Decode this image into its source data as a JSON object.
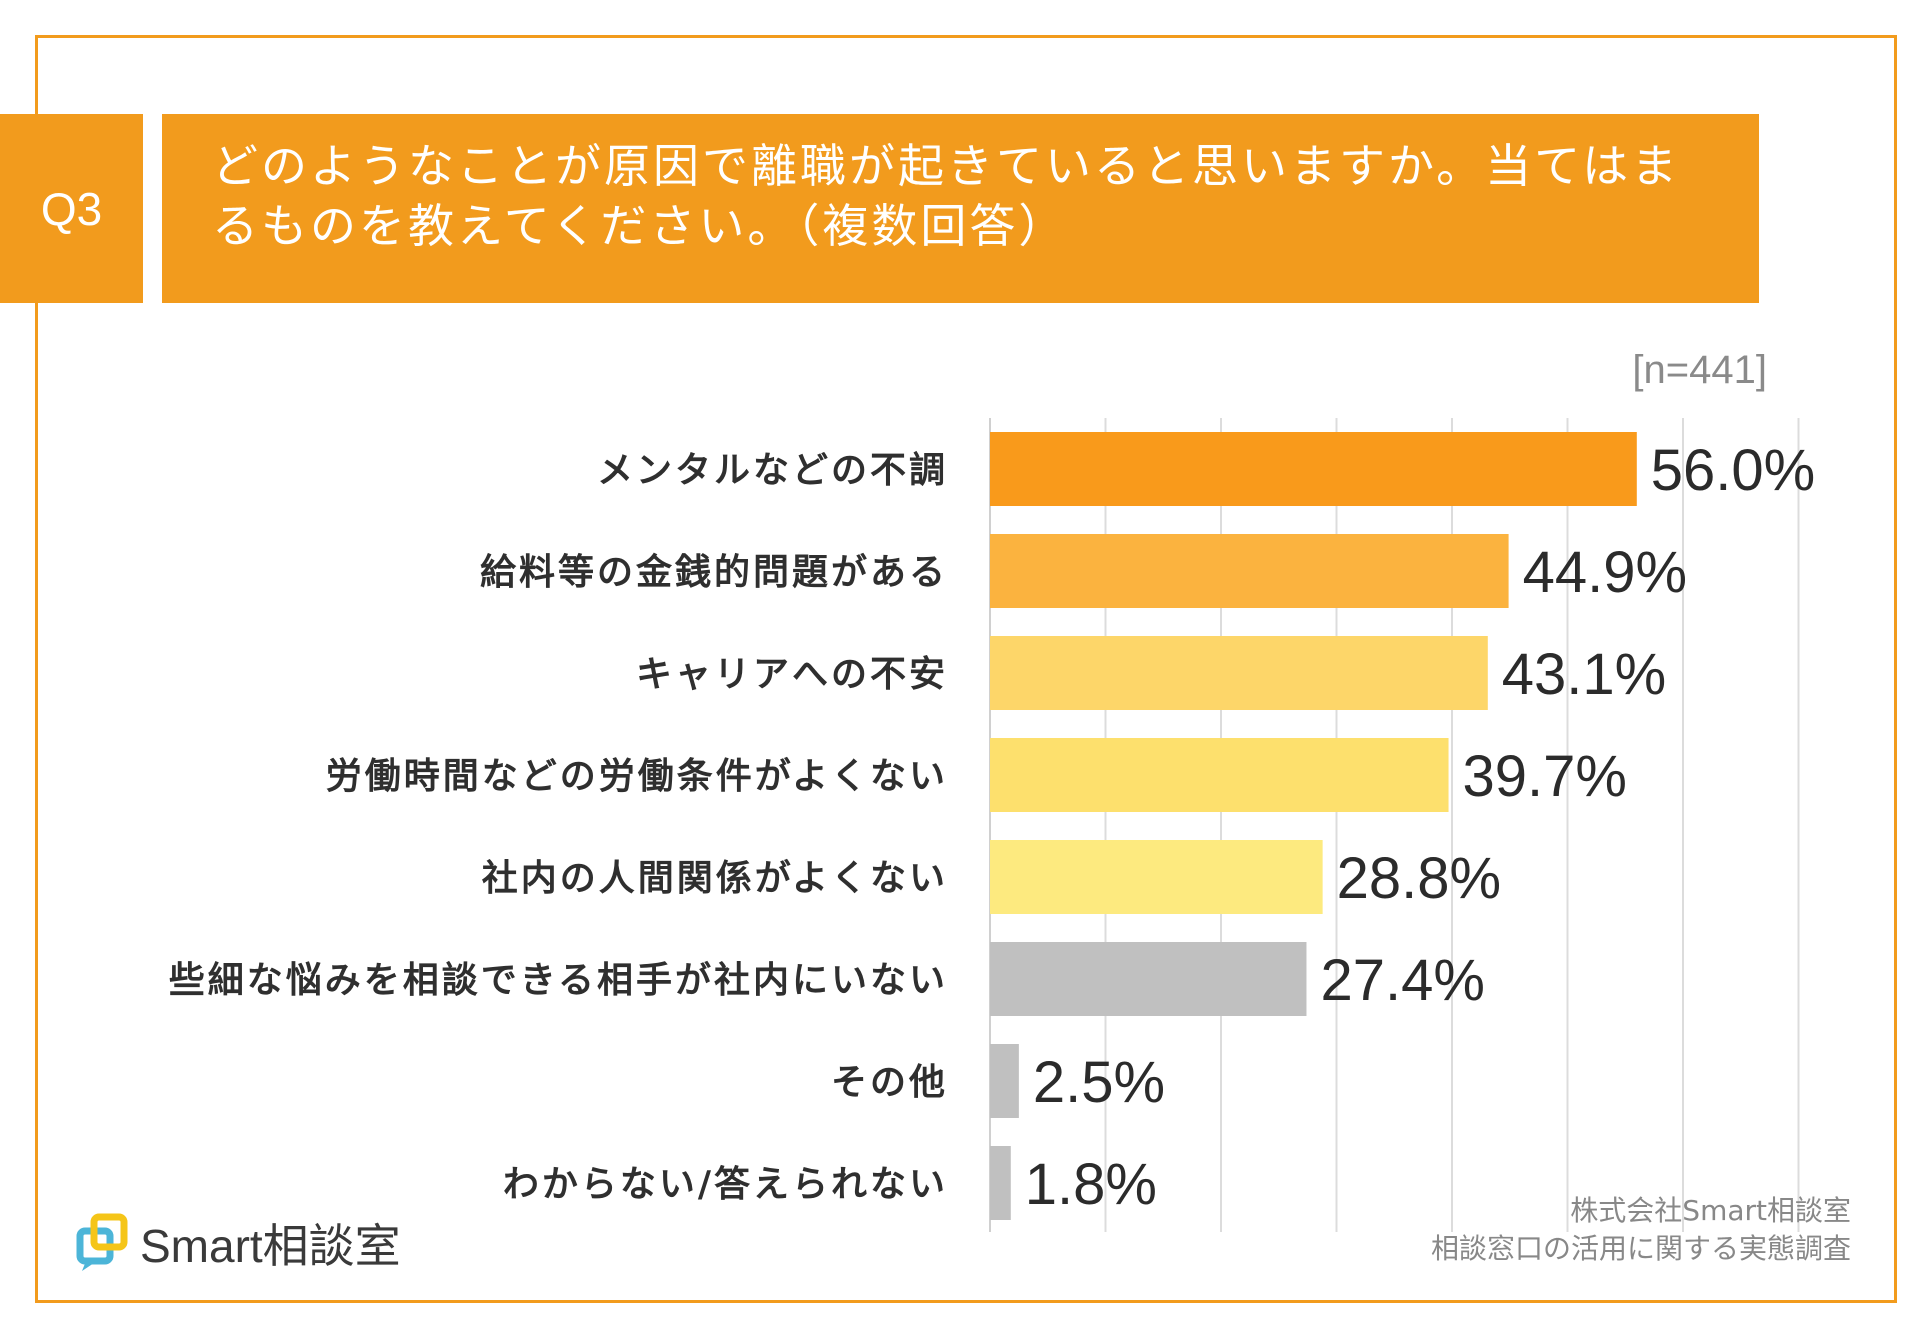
{
  "question": {
    "number": "Q3",
    "text_line1": "どのようなことが原因で離職が起きていると思いますか。当てはま",
    "text_line2": "るものを教えてください。（複数回答）"
  },
  "sample_size": "[n=441]",
  "colors": {
    "accent": "#f29b1d"
  },
  "chart_data": {
    "type": "bar",
    "orientation": "horizontal",
    "unit": "%",
    "xlim": [
      0,
      100
    ],
    "grid": true,
    "categories": [
      "メンタルなどの不調",
      "給料等の金銭的問題がある",
      "キャリアへの不安",
      "労働時間などの労働条件がよくない",
      "社内の人間関係がよくない",
      "些細な悩みを相談できる相手が社内にいない",
      "その他",
      "わからない/答えられない"
    ],
    "values": [
      56.0,
      44.9,
      43.1,
      39.7,
      28.8,
      27.4,
      2.5,
      1.8
    ],
    "value_labels": [
      "56.0%",
      "44.9%",
      "43.1%",
      "39.7%",
      "28.8%",
      "27.4%",
      "2.5%",
      "1.8%"
    ],
    "bar_colors": [
      "#f99a1b",
      "#fbb33f",
      "#fdd669",
      "#fde06d",
      "#fdea7f",
      "#c0c0c0",
      "#c0c0c0",
      "#c0c0c0"
    ]
  },
  "footer": {
    "logo_text": "Smart相談室",
    "source_line1": "株式会社Smart相談室",
    "source_line2": "相談窓口の活用に関する実態調査"
  }
}
